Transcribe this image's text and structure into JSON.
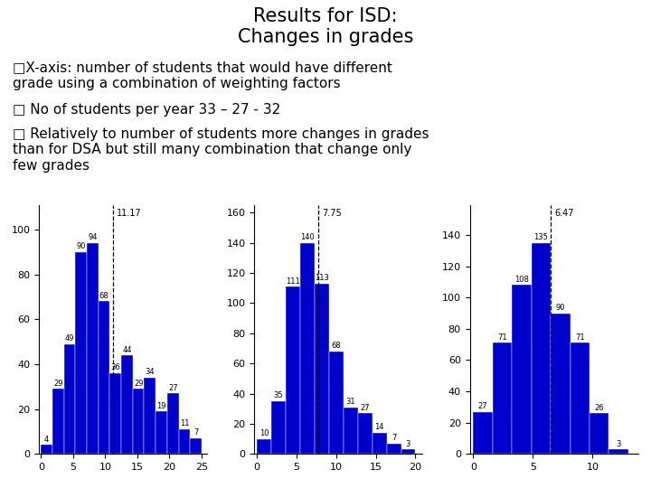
{
  "title": "Results for ISD:\nChanges in grades",
  "annotations": [
    "□X-axis: number of students that would have different\ngrade using a combination of weighting factors",
    "□ No of students per year 33 – 27 - 32",
    "□ Relatively to number of students more changes in grades\nthan for DSA but still many combination that change only\nfew grades"
  ],
  "chart_data": [
    {
      "type": "histogram",
      "bins": [
        0,
        1.7857142857,
        3.5714285714,
        5.3571428571,
        7.1428571429,
        8.9285714286,
        10.7142857143,
        12.5,
        14.2857142857,
        16.0714285714,
        17.8571428571,
        19.6428571429,
        21.4285714286,
        23.2142857143,
        25
      ],
      "values": [
        4,
        29,
        49,
        90,
        94,
        68,
        36,
        44,
        29,
        34,
        19,
        27,
        11,
        7
      ],
      "color": "#0000CC",
      "data_labels": true,
      "mean": {
        "value": 11.17,
        "label": "11.17"
      },
      "xlim": [
        -0.3,
        25.8928571429
      ],
      "xticks": [
        0,
        5,
        10,
        15,
        20,
        25
      ],
      "ylim": [
        0,
        110.92
      ],
      "yticks": [
        0,
        20,
        40,
        60,
        80,
        100
      ]
    },
    {
      "type": "histogram",
      "bins": [
        0,
        1.8181818182,
        3.6363636364,
        5.4545454545,
        7.2727272727,
        9.0909090909,
        10.9090909091,
        12.7272727273,
        14.5454545455,
        16.3636363636,
        18.1818181818,
        20
      ],
      "values": [
        10,
        35,
        111,
        140,
        113,
        68,
        31,
        27,
        14,
        7,
        3
      ],
      "color": "#0000CC",
      "data_labels": true,
      "mean": {
        "value": 7.75,
        "label": "7.75"
      },
      "xlim": [
        -0.3,
        20.9090909091
      ],
      "xticks": [
        0,
        5,
        10,
        15,
        20
      ],
      "ylim": [
        0,
        165.2
      ],
      "yticks": [
        0,
        20,
        40,
        60,
        80,
        100,
        120,
        140,
        160
      ]
    },
    {
      "type": "histogram",
      "bins": [
        0,
        1.625,
        3.25,
        4.875,
        6.5,
        8.125,
        9.75,
        11.375,
        13
      ],
      "values": [
        27,
        71,
        108,
        135,
        90,
        71,
        26,
        3
      ],
      "color": "#0000CC",
      "data_labels": true,
      "mean": {
        "value": 6.47,
        "label": "6.47"
      },
      "xlim": [
        -0.3,
        13.8125
      ],
      "xticks": [
        0,
        5,
        10
      ],
      "ylim": [
        0,
        159.3
      ],
      "yticks": [
        0,
        20,
        40,
        60,
        80,
        100,
        120,
        140
      ]
    }
  ]
}
